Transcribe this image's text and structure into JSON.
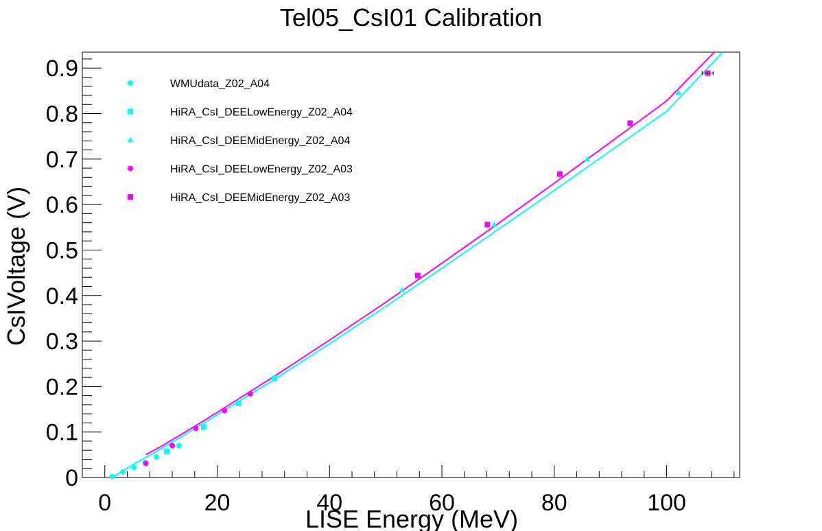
{
  "chart_data": {
    "type": "scatter",
    "title": "Tel05_CsI01 Calibration",
    "xlabel": "LISE Energy (MeV)",
    "ylabel": "CsIVoltage (V)",
    "xlim": [
      -4,
      113
    ],
    "ylim": [
      0,
      0.935
    ],
    "x_ticks": [
      0,
      20,
      40,
      60,
      80,
      100
    ],
    "y_ticks": [
      0,
      0.1,
      0.2,
      0.3,
      0.4,
      0.5,
      0.6,
      0.7,
      0.8,
      0.9
    ],
    "x_tick_labels": [
      "0",
      "20",
      "40",
      "60",
      "80",
      "100"
    ],
    "y_tick_labels": [
      "0",
      "0.1",
      "0.2",
      "0.3",
      "0.4",
      "0.5",
      "0.6",
      "0.7",
      "0.8",
      "0.9"
    ],
    "grid": false,
    "legend_position": "top-left",
    "series": [
      {
        "name": "WMUdata_Z02_A04",
        "marker": "circle",
        "color": "#00ffff",
        "points": [
          [
            1.3,
            0.002
          ],
          [
            3.2,
            0.012
          ],
          [
            5.2,
            0.022
          ],
          [
            7.2,
            0.033
          ],
          [
            9.2,
            0.045
          ],
          [
            11.2,
            0.058
          ],
          [
            13.2,
            0.07
          ]
        ]
      },
      {
        "name": "HiRA_CsI_DEELowEnergy_Z02_A04",
        "marker": "square",
        "color": "#00ffff",
        "points": [
          [
            11.0,
            0.057
          ],
          [
            17.6,
            0.111
          ],
          [
            23.8,
            0.163
          ],
          [
            30.2,
            0.218
          ]
        ]
      },
      {
        "name": "HiRA_CsI_DEEMidEnergy_Z02_A04",
        "marker": "triangle",
        "color": "#00ffff",
        "points": [
          [
            52.9,
            0.412
          ],
          [
            69.3,
            0.556
          ],
          [
            85.9,
            0.7
          ],
          [
            93.6,
            0.778
          ],
          [
            102.1,
            0.846
          ]
        ]
      },
      {
        "name": "HiRA_CsI_DEELowEnergy_Z02_A03",
        "marker": "circle",
        "color": "#ff00ff",
        "points": [
          [
            7.3,
            0.031
          ],
          [
            12.0,
            0.07
          ],
          [
            16.2,
            0.108
          ],
          [
            21.3,
            0.147
          ],
          [
            25.9,
            0.184
          ]
        ]
      },
      {
        "name": "HiRA_CsI_DEEMidEnergy_Z02_A03",
        "marker": "square",
        "color": "#ff00ff",
        "points": [
          [
            55.7,
            0.444
          ],
          [
            68.1,
            0.556
          ],
          [
            81.0,
            0.667
          ],
          [
            93.5,
            0.779
          ],
          [
            107.3,
            0.889
          ]
        ]
      }
    ],
    "fits": [
      {
        "color": "#00ffff",
        "points": [
          [
            1.3,
            0.0
          ],
          [
            5,
            0.028
          ],
          [
            10,
            0.063
          ],
          [
            15,
            0.1
          ],
          [
            20,
            0.138
          ],
          [
            30,
            0.214
          ],
          [
            40,
            0.294
          ],
          [
            50,
            0.376
          ],
          [
            60,
            0.46
          ],
          [
            70,
            0.545
          ],
          [
            80,
            0.631
          ],
          [
            90,
            0.718
          ],
          [
            100,
            0.805
          ],
          [
            110,
            0.935
          ]
        ]
      },
      {
        "color": "#ff00ff",
        "points": [
          [
            7.3,
            0.05
          ],
          [
            10,
            0.068
          ],
          [
            15,
            0.105
          ],
          [
            20,
            0.143
          ],
          [
            30,
            0.221
          ],
          [
            40,
            0.302
          ],
          [
            50,
            0.385
          ],
          [
            60,
            0.471
          ],
          [
            70,
            0.558
          ],
          [
            80,
            0.647
          ],
          [
            90,
            0.737
          ],
          [
            100,
            0.828
          ],
          [
            108.5,
            0.935
          ]
        ]
      }
    ]
  }
}
